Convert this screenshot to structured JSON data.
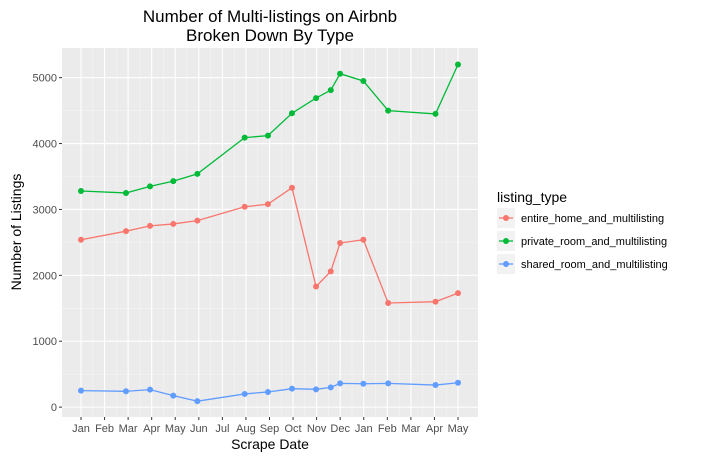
{
  "chart_data": {
    "type": "line",
    "title": "Number of Multi-listings on Airbnb",
    "subtitle": "Broken Down By Type",
    "xlabel": "Scrape Date",
    "ylabel": "Number of Listings",
    "x_ticks": [
      "Jan",
      "Feb",
      "Mar",
      "Apr",
      "May",
      "Jun",
      "Jul",
      "Aug",
      "Sep",
      "Oct",
      "Nov",
      "Dec",
      "Jan",
      "Feb",
      "Mar",
      "Apr",
      "May"
    ],
    "y_ticks": [
      0,
      1000,
      2000,
      3000,
      4000,
      5000
    ],
    "ylim": [
      -150,
      5450
    ],
    "grid": true,
    "legend_title": "listing_type",
    "legend_position": "right",
    "series": [
      {
        "name": "entire_home_and_multilisting",
        "color": "#F8766D",
        "x": [
          "2015-01-02",
          "2015-03-01",
          "2015-04-01",
          "2015-05-01",
          "2015-06-01",
          "2015-08-01",
          "2015-08-31",
          "2015-10-01",
          "2015-11-01",
          "2015-11-20",
          "2015-12-02",
          "2016-01-01",
          "2016-02-02",
          "2016-04-03",
          "2016-05-02"
        ],
        "values": [
          2540,
          2670,
          2750,
          2780,
          2830,
          3040,
          3080,
          3330,
          1830,
          2060,
          2490,
          2540,
          1580,
          1600,
          1730
        ]
      },
      {
        "name": "private_room_and_multilisting",
        "color": "#00BA38",
        "x": [
          "2015-01-02",
          "2015-03-01",
          "2015-04-01",
          "2015-05-01",
          "2015-06-01",
          "2015-08-01",
          "2015-08-31",
          "2015-10-01",
          "2015-11-01",
          "2015-11-20",
          "2015-12-02",
          "2016-01-01",
          "2016-02-02",
          "2016-04-03",
          "2016-05-02"
        ],
        "values": [
          3280,
          3250,
          3350,
          3430,
          3540,
          4090,
          4120,
          4460,
          4690,
          4810,
          5060,
          4950,
          4500,
          4450,
          5200
        ]
      },
      {
        "name": "shared_room_and_multilisting",
        "color": "#619CFF",
        "x": [
          "2015-01-02",
          "2015-03-01",
          "2015-04-01",
          "2015-05-01",
          "2015-06-01",
          "2015-08-01",
          "2015-08-31",
          "2015-10-01",
          "2015-11-01",
          "2015-11-20",
          "2015-12-02",
          "2016-01-01",
          "2016-02-02",
          "2016-04-03",
          "2016-05-02"
        ],
        "values": [
          250,
          240,
          265,
          175,
          90,
          200,
          230,
          280,
          270,
          300,
          360,
          355,
          360,
          335,
          370
        ]
      }
    ]
  }
}
